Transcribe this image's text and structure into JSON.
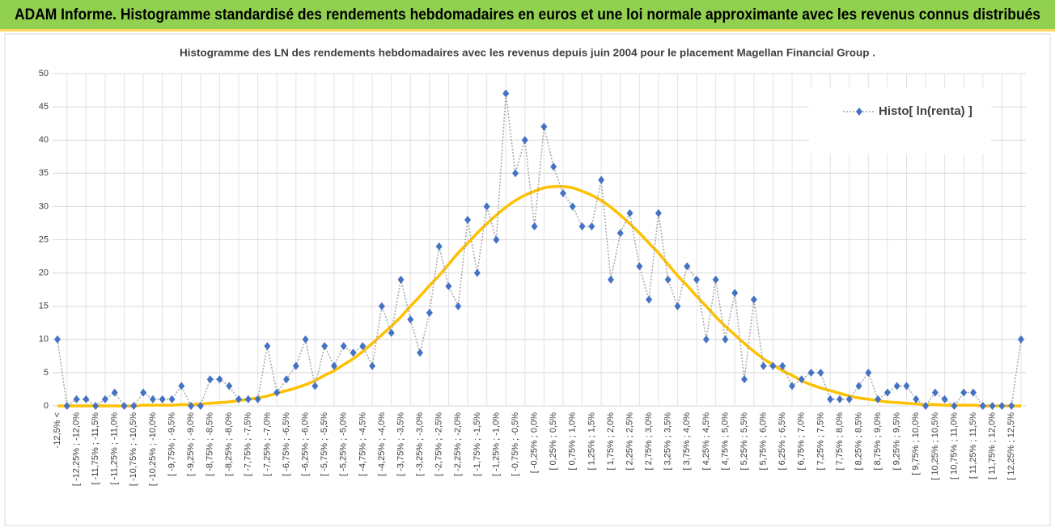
{
  "header": {
    "title": "ADAM Informe. Histogramme standardisé des rendements hebdomadaires en euros et une loi normale approximante avec les revenus connus distribués"
  },
  "chart_data": {
    "type": "line",
    "title": "Histogramme des LN des rendements hebdomadaires avec les revenus depuis juin 2004 pour le placement Magellan Financial Group .",
    "categories": [
      "-12,5% <",
      null,
      "[ -12,25% ; -12,0%",
      null,
      "[ -11,75% ; -11,5%",
      null,
      "[ -11,25% ; -11,0%",
      null,
      "[ -10,75% ; -10,5%",
      null,
      "[ -10,25% ; -10,0%",
      null,
      "[ -9,75% ; -9,5%",
      null,
      "[ -9,25% ; -9,0%",
      null,
      "[ -8,75% ; -8,5%",
      null,
      "[ -8,25% ; -8,0%",
      null,
      "[ -7,75% ; -7,5%",
      null,
      "[ -7,25% ; -7,0%",
      null,
      "[ -6,75% ; -6,5%",
      null,
      "[ -6,25% ; -6,0%",
      null,
      "[ -5,75% ; -5,5%",
      null,
      "[ -5,25% ; -5,0%",
      null,
      "[ -4,75% ; -4,5%",
      null,
      "[ -4,25% ; -4,0%",
      null,
      "[ -3,75% ; -3,5%",
      null,
      "[ -3,25% ; -3,0%",
      null,
      "[ -2,75% ; -2,5%",
      null,
      "[ -2,25% ; -2,0%",
      null,
      "[ -1,75% ; -1,5%",
      null,
      "[ -1,25% ; -1,0%",
      null,
      "[ -0,75% ; -0,5%",
      null,
      "[ -0,25% ; 0,0%",
      null,
      "[ 0,25% ; 0,5%",
      null,
      "[ 0,75% ; 1,0%",
      null,
      "[ 1,25% ; 1,5%",
      null,
      "[ 1,75% ; 2,0%",
      null,
      "[ 2,25% ; 2,5%",
      null,
      "[ 2,75% ; 3,0%",
      null,
      "[ 3,25% ; 3,5%",
      null,
      "[ 3,75% ; 4,0%",
      null,
      "[ 4,25% ; 4,5%",
      null,
      "[ 4,75% ; 5,0%",
      null,
      "[ 5,25% ; 5,5%",
      null,
      "[ 5,75% ; 6,0%",
      null,
      "[ 6,25% ; 6,5%",
      null,
      "[ 6,75% ; 7,0%",
      null,
      "[ 7,25% ; 7,5%",
      null,
      "[ 7,75% ; 8,0%",
      null,
      "[ 8,25% ; 8,5%",
      null,
      "[ 8,75% ; 9,0%",
      null,
      "[ 9,25% ; 9,5%",
      null,
      "[ 9,75% ; 10,0%",
      null,
      "[ 10,25% ; 10,5%",
      null,
      "[ 10,75% ; 11,0%",
      null,
      "[ 11,25% ; 11,5%",
      null,
      "[ 11,75% ; 12,0%",
      null,
      "[ 12,25% ; 12,5%",
      null
    ],
    "series": [
      {
        "name": "Histo[ ln(renta) ]",
        "color": "#4472c4",
        "line_color": "#a6a6a6",
        "line_style": "dotted",
        "marker": "diamond",
        "values": [
          10,
          0,
          1,
          1,
          0,
          1,
          2,
          0,
          0,
          2,
          1,
          1,
          1,
          3,
          0,
          0,
          4,
          4,
          3,
          1,
          1,
          1,
          9,
          2,
          4,
          6,
          10,
          3,
          9,
          6,
          9,
          8,
          9,
          6,
          15,
          11,
          19,
          13,
          8,
          14,
          24,
          18,
          15,
          28,
          20,
          30,
          25,
          47,
          35,
          40,
          27,
          42,
          36,
          32,
          30,
          27,
          27,
          34,
          19,
          26,
          29,
          21,
          16,
          29,
          19,
          15,
          21,
          19,
          10,
          19,
          10,
          17,
          4,
          16,
          6,
          6,
          6,
          3,
          4,
          5,
          5,
          1,
          1,
          1,
          3,
          5,
          1,
          2,
          3,
          3,
          1,
          0,
          2,
          1,
          0,
          2,
          2,
          0,
          0,
          0,
          0,
          10
        ]
      },
      {
        "color": "#ffc000",
        "line_style": "solid",
        "smooth": true,
        "values": [
          0,
          0,
          0,
          0,
          0,
          0,
          0,
          0,
          0,
          0.1,
          0.1,
          0.1,
          0.1,
          0.2,
          0.2,
          0.3,
          0.4,
          0.5,
          0.6,
          0.8,
          1.0,
          1.2,
          1.5,
          1.9,
          2.3,
          2.7,
          3.2,
          3.8,
          4.6,
          5.3,
          6.2,
          7.1,
          8.2,
          9.4,
          10.7,
          12.0,
          13.4,
          15.0,
          16.5,
          18.1,
          19.6,
          21.3,
          23.0,
          24.5,
          26.0,
          27.4,
          28.7,
          29.9,
          30.9,
          31.7,
          32.3,
          32.8,
          33.0,
          33.0,
          32.8,
          32.3,
          31.7,
          30.9,
          29.9,
          28.7,
          27.4,
          26.0,
          24.5,
          23.0,
          21.3,
          19.6,
          18.1,
          16.5,
          15.0,
          13.4,
          12.0,
          10.7,
          9.4,
          8.2,
          7.1,
          6.2,
          5.3,
          4.6,
          3.8,
          3.2,
          2.7,
          2.3,
          1.9,
          1.5,
          1.2,
          1.0,
          0.8,
          0.6,
          0.5,
          0.4,
          0.3,
          0.2,
          0.2,
          0.1,
          0.1,
          0.1,
          0.1,
          0,
          0,
          0,
          0,
          0
        ]
      }
    ],
    "ylim": [
      0,
      50
    ],
    "yticks": [
      0,
      5,
      10,
      15,
      20,
      25,
      30,
      35,
      40,
      45,
      50
    ],
    "grid": true,
    "legend": "top-right"
  }
}
